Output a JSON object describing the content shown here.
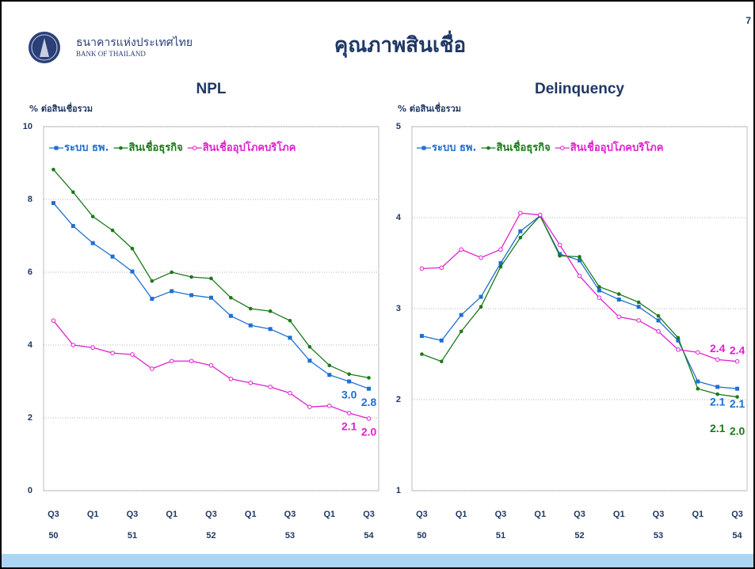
{
  "header": {
    "bank_th": "ธนาคารแห่งประเทศไทย",
    "bank_en": "BANK OF THAILAND",
    "title": "คุณภาพสินเชื่อ",
    "page": "7"
  },
  "chart_data": [
    {
      "type": "line",
      "title": "NPL",
      "y_label": "% ต่อสินเชื่อรวม",
      "categories": [
        "Q3",
        null,
        "Q1",
        null,
        "Q3",
        null,
        "Q1",
        null,
        "Q3",
        null,
        "Q1",
        null,
        "Q3",
        null,
        "Q1",
        null,
        "Q3"
      ],
      "years": [
        "50",
        null,
        null,
        null,
        "51",
        null,
        null,
        null,
        "52",
        null,
        null,
        null,
        "53",
        null,
        null,
        null,
        "54"
      ],
      "ylim": [
        0,
        10
      ],
      "yticks": [
        0,
        2,
        4,
        6,
        8,
        10
      ],
      "grid": true,
      "legend": "top-left",
      "series": [
        {
          "name": "ระบบ ธพ.",
          "color": "#1f6fd1",
          "marker": "square",
          "values": [
            7.9,
            7.27,
            6.8,
            6.43,
            6.02,
            5.27,
            5.48,
            5.37,
            5.3,
            4.8,
            4.54,
            4.44,
            4.2,
            3.57,
            3.18,
            3.0,
            2.8
          ],
          "value_labels": [
            null,
            null,
            null,
            null,
            null,
            null,
            null,
            null,
            null,
            null,
            null,
            null,
            null,
            null,
            null,
            "3.0",
            "2.8"
          ]
        },
        {
          "name": "สินเชื่อธุรกิจ",
          "color": "#1a7a1a",
          "marker": "dot",
          "values": [
            8.82,
            8.2,
            7.53,
            7.15,
            6.65,
            5.76,
            6.0,
            5.87,
            5.83,
            5.3,
            5.0,
            4.93,
            4.67,
            3.95,
            3.44,
            3.2,
            3.1
          ],
          "value_labels": [
            null,
            null,
            null,
            null,
            null,
            null,
            null,
            null,
            null,
            null,
            null,
            null,
            null,
            null,
            null,
            null,
            null
          ]
        },
        {
          "name": "สินเชื่ออุปโภคบริโภค",
          "color": "#e020d0",
          "marker": "circle",
          "values": [
            4.67,
            4.0,
            3.93,
            3.78,
            3.74,
            3.35,
            3.56,
            3.56,
            3.44,
            3.07,
            2.96,
            2.85,
            2.68,
            2.3,
            2.33,
            2.13,
            1.98
          ],
          "value_labels": [
            null,
            null,
            null,
            null,
            null,
            null,
            null,
            null,
            null,
            null,
            null,
            null,
            null,
            null,
            null,
            "2.1",
            "2.0"
          ]
        }
      ]
    },
    {
      "type": "line",
      "title": "Delinquency",
      "y_label": "% ต่อสินเชื่อรวม",
      "categories": [
        "Q3",
        null,
        "Q1",
        null,
        "Q3",
        null,
        "Q1",
        null,
        "Q3",
        null,
        "Q1",
        null,
        "Q3",
        null,
        "Q1",
        null,
        "Q3"
      ],
      "years": [
        "50",
        null,
        null,
        null,
        "51",
        null,
        null,
        null,
        "52",
        null,
        null,
        null,
        "53",
        null,
        null,
        null,
        "54"
      ],
      "ylim": [
        1,
        5
      ],
      "yticks": [
        1,
        2,
        3,
        4,
        5
      ],
      "grid": true,
      "legend": "top-left",
      "series": [
        {
          "name": "ระบบ ธพ.",
          "color": "#1f6fd1",
          "marker": "square",
          "values": [
            2.7,
            2.65,
            2.93,
            3.13,
            3.5,
            3.85,
            4.02,
            3.6,
            3.53,
            3.2,
            3.1,
            3.02,
            2.87,
            2.65,
            2.2,
            2.14,
            2.12
          ],
          "value_labels": [
            null,
            null,
            null,
            null,
            null,
            null,
            null,
            null,
            null,
            null,
            null,
            null,
            null,
            null,
            null,
            "2.1",
            "2.1"
          ]
        },
        {
          "name": "สินเชื่อธุรกิจ",
          "color": "#1a7a1a",
          "marker": "dot",
          "values": [
            2.5,
            2.42,
            2.75,
            3.02,
            3.46,
            3.78,
            4.02,
            3.58,
            3.57,
            3.24,
            3.16,
            3.07,
            2.92,
            2.68,
            2.12,
            2.06,
            2.03
          ],
          "value_labels": [
            null,
            null,
            null,
            null,
            null,
            null,
            null,
            null,
            null,
            null,
            null,
            null,
            null,
            null,
            null,
            "2.1",
            "2.0"
          ]
        },
        {
          "name": "สินเชื่ออุปโภคบริโภค",
          "color": "#e020d0",
          "marker": "circle",
          "values": [
            3.44,
            3.45,
            3.65,
            3.56,
            3.65,
            4.05,
            4.03,
            3.7,
            3.36,
            3.12,
            2.91,
            2.87,
            2.75,
            2.55,
            2.52,
            2.44,
            2.42
          ],
          "value_labels": [
            null,
            null,
            null,
            null,
            null,
            null,
            null,
            null,
            null,
            null,
            null,
            null,
            null,
            null,
            null,
            "2.4",
            "2.4"
          ]
        }
      ]
    }
  ]
}
